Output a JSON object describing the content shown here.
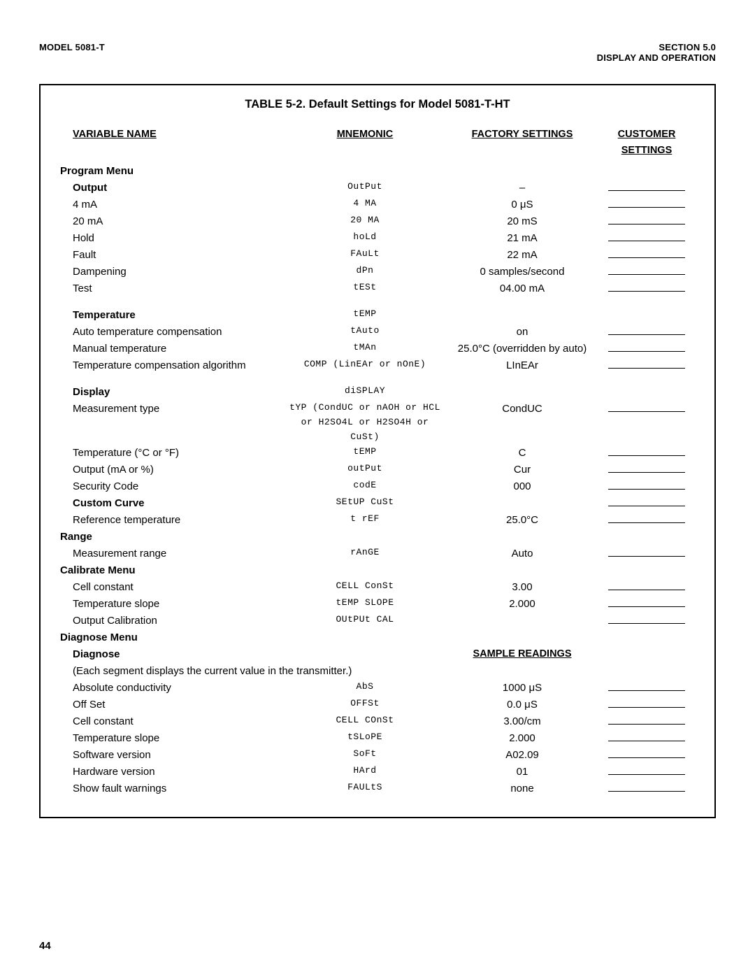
{
  "header": {
    "left": "MODEL 5081-T",
    "right1": "SECTION 5.0",
    "right2": "DISPLAY AND OPERATION"
  },
  "table_title": "TABLE 5-2. Default Settings for Model 5081-T-HT",
  "col_headers": {
    "variable": "VARIABLE NAME",
    "mnemonic": "MNEMONIC",
    "factory": "FACTORY SETTINGS",
    "customer": "CUSTOMER SETTINGS"
  },
  "rows": [
    {
      "type": "section",
      "level": 0,
      "variable": "Program Menu"
    },
    {
      "type": "section",
      "level": 1,
      "variable": "Output",
      "mnemonic": "OutPut",
      "factory": "–",
      "blank": true
    },
    {
      "type": "item",
      "level": 1,
      "variable": "4 mA",
      "mnemonic": "4 MA",
      "factory": "0 μS",
      "blank": true
    },
    {
      "type": "item",
      "level": 1,
      "variable": "20 mA",
      "mnemonic": "20 MA",
      "factory": "20 mS",
      "blank": true
    },
    {
      "type": "item",
      "level": 1,
      "variable": "Hold",
      "mnemonic": "hoLd",
      "factory": "21 mA",
      "blank": true
    },
    {
      "type": "item",
      "level": 1,
      "variable": "Fault",
      "mnemonic": "FAuLt",
      "factory": "22 mA",
      "blank": true
    },
    {
      "type": "item",
      "level": 1,
      "variable": "Dampening",
      "mnemonic": "dPn",
      "factory": "0 samples/second",
      "blank": true
    },
    {
      "type": "item",
      "level": 1,
      "variable": "Test",
      "mnemonic": "tESt",
      "factory": "04.00 mA",
      "blank": true
    },
    {
      "type": "spacer"
    },
    {
      "type": "section",
      "level": 1,
      "variable": "Temperature",
      "mnemonic": "tEMP"
    },
    {
      "type": "item",
      "level": 1,
      "variable": "Auto temperature compensation",
      "mnemonic": "tAuto",
      "factory": "on",
      "blank": true
    },
    {
      "type": "item",
      "level": 1,
      "variable": "Manual temperature",
      "mnemonic": "tMAn",
      "factory": "25.0°C (overridden by auto)",
      "blank": true
    },
    {
      "type": "item",
      "level": 1,
      "variable": "Temperature compensation algorithm",
      "mnemonic": "COMP (LinEAr or nOnE)",
      "factory": "LInEAr",
      "blank": true
    },
    {
      "type": "spacer"
    },
    {
      "type": "section",
      "level": 1,
      "variable": "Display",
      "mnemonic": "diSPLAY"
    },
    {
      "type": "item",
      "level": 1,
      "variable": "Measurement type",
      "mnemonic": "tYP (CondUC or nAOH or HCL\nor H2SO4L or H2SO4H or CuSt)",
      "factory": "CondUC",
      "blank": true
    },
    {
      "type": "item",
      "level": 1,
      "variable": "Temperature  (°C or °F)",
      "mnemonic": "tEMP",
      "factory": "C",
      "blank": true
    },
    {
      "type": "item",
      "level": 1,
      "variable": "Output (mA or %)",
      "mnemonic": "outPut",
      "factory": "Cur",
      "blank": true
    },
    {
      "type": "item",
      "level": 1,
      "variable": "Security Code",
      "mnemonic": "codE",
      "factory": "000",
      "blank": true
    },
    {
      "type": "section",
      "level": 1,
      "variable": "Custom Curve",
      "mnemonic": "SEtUP CuSt",
      "blank": true
    },
    {
      "type": "item",
      "level": 1,
      "variable": "Reference temperature",
      "mnemonic": "t rEF",
      "factory": "25.0°C",
      "blank": true
    },
    {
      "type": "section",
      "level": 0,
      "variable": "Range"
    },
    {
      "type": "item",
      "level": 1,
      "variable": "Measurement range",
      "mnemonic": "rAnGE",
      "factory": "Auto",
      "blank": true
    },
    {
      "type": "section",
      "level": 0,
      "variable": "Calibrate Menu"
    },
    {
      "type": "item",
      "level": 1,
      "variable": "Cell constant",
      "mnemonic": "CELL ConSt",
      "factory": "3.00",
      "blank": true
    },
    {
      "type": "item",
      "level": 1,
      "variable": "Temperature slope",
      "mnemonic": "tEMP SLOPE",
      "factory": "2.000",
      "blank": true
    },
    {
      "type": "item",
      "level": 1,
      "variable": "Output Calibration",
      "mnemonic": "OUtPUt CAL",
      "blank": true
    },
    {
      "type": "section",
      "level": 0,
      "variable": "Diagnose Menu"
    },
    {
      "type": "section",
      "level": 1,
      "variable": "Diagnose",
      "factory_header": "SAMPLE READINGS"
    },
    {
      "type": "note",
      "text": "(Each segment displays the current value in the transmitter.)"
    },
    {
      "type": "item",
      "level": 1,
      "variable": "Absolute conductivity",
      "mnemonic": "AbS",
      "factory": "1000 μS",
      "blank": true
    },
    {
      "type": "item",
      "level": 1,
      "variable": "Off Set",
      "mnemonic": "OFFSt",
      "factory": "0.0 μS",
      "blank": true
    },
    {
      "type": "item",
      "level": 1,
      "variable": "Cell constant",
      "mnemonic": "CELL COnSt",
      "factory": "3.00/cm",
      "blank": true
    },
    {
      "type": "item",
      "level": 1,
      "variable": "Temperature slope",
      "mnemonic": "tSLoPE",
      "factory": "2.000",
      "blank": true
    },
    {
      "type": "item",
      "level": 1,
      "variable": "Software version",
      "mnemonic": "SoFt",
      "factory": "A02.09",
      "blank": true
    },
    {
      "type": "item",
      "level": 1,
      "variable": "Hardware version",
      "mnemonic": "HArd",
      "factory": "01",
      "blank": true
    },
    {
      "type": "item",
      "level": 1,
      "variable": "Show fault warnings",
      "mnemonic": "FAULtS",
      "factory": "none",
      "blank": true
    }
  ],
  "page_number": "44"
}
